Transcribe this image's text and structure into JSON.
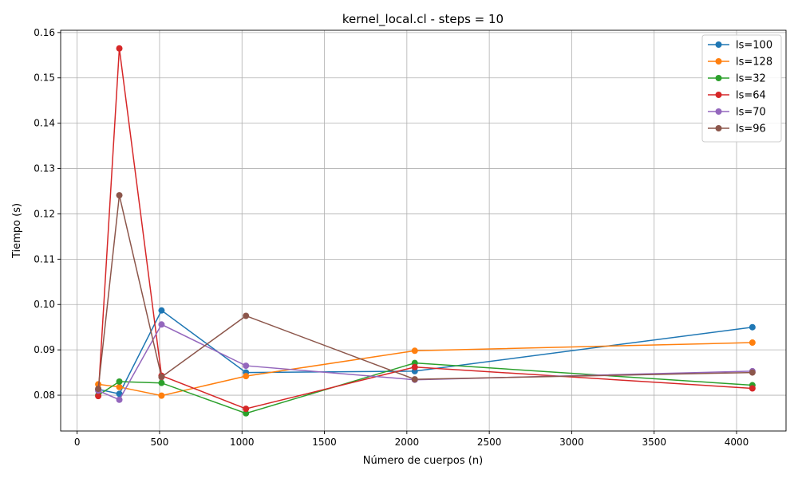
{
  "chart_data": {
    "type": "line",
    "title": "kernel_local.cl - steps = 10",
    "xlabel": "Número de cuerpos (n)",
    "ylabel": "Tiempo (s)",
    "xlim": [
      -100,
      4300
    ],
    "ylim": [
      0.0721,
      0.1605
    ],
    "xticks": [
      0,
      500,
      1000,
      1500,
      2000,
      2500,
      3000,
      3500,
      4000
    ],
    "yticks": [
      0.08,
      0.09,
      0.1,
      0.11,
      0.12,
      0.13,
      0.14,
      0.15,
      0.16
    ],
    "ytick_labels": [
      "0.08",
      "0.09",
      "0.10",
      "0.11",
      "0.12",
      "0.13",
      "0.14",
      "0.15",
      "0.16"
    ],
    "grid": true,
    "legend_position": "top-right",
    "x": [
      128,
      256,
      512,
      1024,
      2048,
      4096
    ],
    "series": [
      {
        "name": "ls=100",
        "color": "#1f77b4",
        "values": [
          0.0813,
          0.0803,
          0.0987,
          0.085,
          0.0853,
          0.095
        ]
      },
      {
        "name": "ls=128",
        "color": "#ff7f0e",
        "values": [
          0.0824,
          0.0818,
          0.0799,
          0.0842,
          0.0898,
          0.0916
        ]
      },
      {
        "name": "ls=32",
        "color": "#2ca02c",
        "values": [
          0.08,
          0.083,
          0.0827,
          0.076,
          0.0871,
          0.0822
        ]
      },
      {
        "name": "ls=64",
        "color": "#d62728",
        "values": [
          0.0798,
          0.1565,
          0.0843,
          0.077,
          0.0862,
          0.0815
        ]
      },
      {
        "name": "ls=70",
        "color": "#9467bd",
        "values": [
          0.081,
          0.079,
          0.0956,
          0.0865,
          0.0834,
          0.0853
        ]
      },
      {
        "name": "ls=96",
        "color": "#8c564b",
        "values": [
          0.0814,
          0.1241,
          0.084,
          0.0975,
          0.0835,
          0.085
        ]
      }
    ]
  }
}
